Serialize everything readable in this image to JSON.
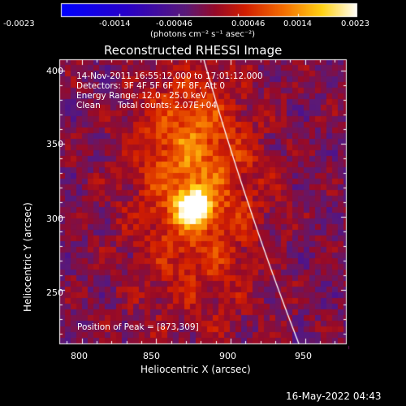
{
  "colorbar": {
    "tick_labels": [
      "-0.0023",
      "-0.0014",
      "-0.00046",
      "0.00046",
      "0.0014",
      "0.0023"
    ],
    "unit_label": "(photons cm⁻² s⁻¹ asec⁻²)"
  },
  "plot": {
    "title": "Reconstructed RHESSI Image",
    "xlabel": "Heliocentric X (arcsec)",
    "ylabel": "Heliocentric Y (arcsec)",
    "xticks": [
      "800",
      "850",
      "900",
      "950"
    ],
    "yticks": [
      "400",
      "350",
      "300",
      "250"
    ],
    "xlim": [
      785,
      978
    ],
    "ylim": [
      213,
      408
    ]
  },
  "annotation": {
    "time_range": "14-Nov-2011 16:55:12.000 to 17:01:12.000",
    "detectors": "Detectors: 3F 4F 5F 6F 7F 8F, Att 0",
    "energy": "Energy Range: 12.0 - 25.0 keV",
    "algorithm": "Clean",
    "total_counts": "Total counts: 2.07E+04",
    "peak": "Position of Peak = [873,309]"
  },
  "footer": {
    "timestamp": "16-May-2022 04:43"
  },
  "colors": {
    "background": "#000000",
    "axes": "#ffffff",
    "limb": "#ffffff"
  }
}
